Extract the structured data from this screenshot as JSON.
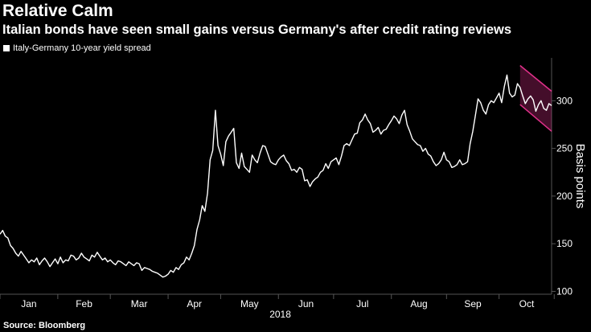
{
  "title": "Relative Calm",
  "subtitle": "Italian bonds have seen small gains versus Germany's after credit rating reviews",
  "source": "Source: Bloomberg",
  "colors": {
    "background": "#000000",
    "line": "#ffffff",
    "channel": "#e0308a",
    "grid": "#555555"
  },
  "chart_data": {
    "type": "line",
    "series": [
      {
        "name": "Italy-Germany 10-year yield spread",
        "values": [
          160,
          164,
          158,
          156,
          148,
          145,
          140,
          137,
          142,
          138,
          134,
          130,
          133,
          131,
          135,
          128,
          132,
          135,
          131,
          126,
          130,
          134,
          129,
          136,
          130,
          133,
          132,
          138,
          137,
          133,
          135,
          140,
          136,
          134,
          132,
          138,
          136,
          141,
          137,
          133,
          135,
          131,
          133,
          130,
          128,
          132,
          131,
          129,
          127,
          131,
          129,
          127,
          130,
          129,
          122,
          125,
          124,
          123,
          121,
          120,
          119,
          117,
          115,
          116,
          118,
          122,
          120,
          125,
          123,
          128,
          130,
          136,
          133,
          140,
          148,
          165,
          175,
          190,
          184,
          203,
          238,
          248,
          290,
          253,
          244,
          232,
          257,
          263,
          267,
          271,
          235,
          229,
          245,
          231,
          228,
          225,
          243,
          238,
          235,
          245,
          253,
          252,
          244,
          236,
          234,
          233,
          238,
          241,
          243,
          237,
          234,
          227,
          228,
          225,
          230,
          228,
          216,
          217,
          210,
          215,
          218,
          220,
          225,
          227,
          234,
          229,
          236,
          238,
          240,
          233,
          242,
          253,
          255,
          253,
          259,
          265,
          266,
          277,
          280,
          286,
          280,
          276,
          267,
          269,
          272,
          265,
          269,
          270,
          275,
          279,
          284,
          281,
          276,
          285,
          290,
          275,
          268,
          260,
          257,
          254,
          253,
          247,
          250,
          244,
          242,
          236,
          232,
          234,
          238,
          246,
          238,
          236,
          230,
          231,
          233,
          238,
          233,
          234,
          236,
          255,
          268,
          285,
          302,
          298,
          290,
          286,
          296,
          300,
          298,
          303,
          308,
          298,
          315,
          327,
          308,
          304,
          306,
          318,
          314,
          305,
          297,
          302,
          305,
          301,
          289,
          296,
          300,
          292,
          290,
          297,
          295
        ]
      }
    ],
    "xlabel": "2018",
    "ylabel": "Basis points",
    "x_tick_labels": [
      "Jan",
      "Feb",
      "Mar",
      "Apr",
      "May",
      "Jun",
      "Jul",
      "Aug",
      "Sep",
      "Oct"
    ],
    "y_ticks": [
      100,
      150,
      200,
      250,
      300
    ],
    "ylim": [
      97,
      345
    ],
    "annotation": {
      "shape": "downward channel",
      "color": "#e0308a",
      "period": "Oct"
    },
    "grid": false,
    "legend_position": "top-left"
  }
}
